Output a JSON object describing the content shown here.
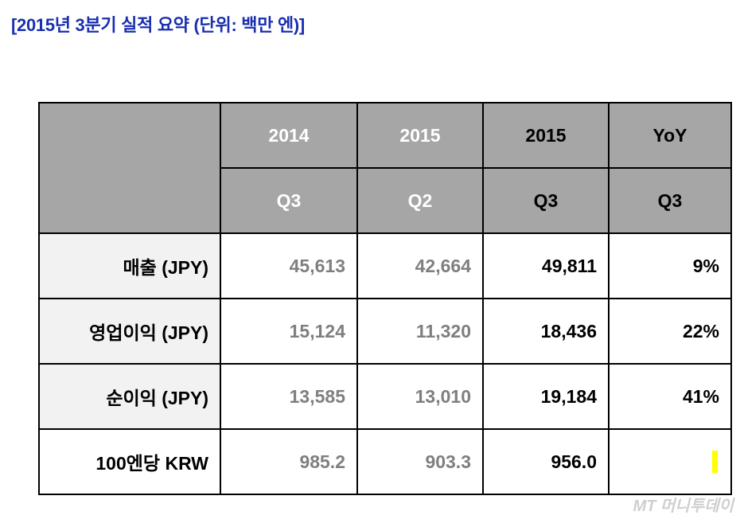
{
  "title": "[2015년 3분기 실적 요약 (단위: 백만 엔)]",
  "table": {
    "header_row1": [
      "2014",
      "2015",
      "2015",
      "YoY"
    ],
    "header_row2": [
      "Q3",
      "Q2",
      "Q3",
      "Q3"
    ],
    "rows": [
      {
        "label": "매출 (JPY)",
        "values": [
          "45,613",
          "42,664",
          "49,811",
          "9%"
        ]
      },
      {
        "label": "영업이익 (JPY)",
        "values": [
          "15,124",
          "11,320",
          "18,436",
          "22%"
        ]
      },
      {
        "label": "순이익 (JPY)",
        "values": [
          "13,585",
          "13,010",
          "19,184",
          "41%"
        ]
      },
      {
        "label": "100엔당 KRW",
        "values": [
          "985.2",
          "903.3",
          "956.0",
          ""
        ]
      }
    ]
  },
  "watermark": "MT 머니투데이",
  "colors": {
    "title": "#1a2fb0",
    "header_bg": "#a6a6a6",
    "label_bg": "#f2f2f2",
    "past_values": "#7f7f7f",
    "highlight": "#ffff00"
  }
}
